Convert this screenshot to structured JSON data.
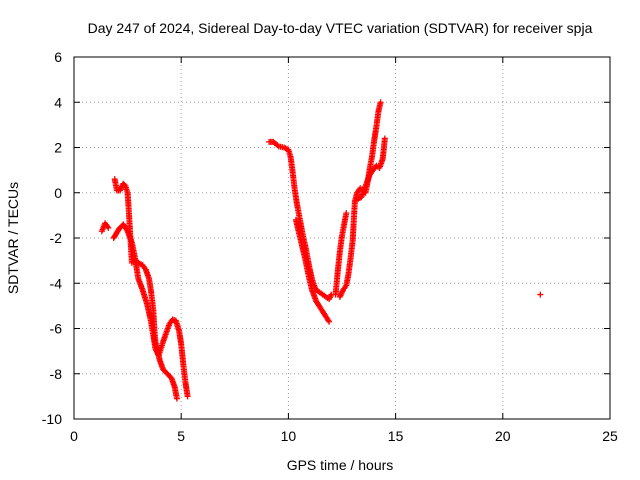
{
  "chart_data": {
    "type": "scatter",
    "title": "Day 247 of 2024, Sidereal Day-to-day VTEC variation (SDTVAR) for receiver spja",
    "xlabel": "GPS time / hours",
    "ylabel": "SDTVAR / TECUs",
    "xlim": [
      0,
      25
    ],
    "ylim": [
      -10,
      6
    ],
    "xticks": [
      0,
      5,
      10,
      15,
      20,
      25
    ],
    "yticks": [
      -10,
      -8,
      -6,
      -4,
      -2,
      0,
      2,
      4,
      6
    ],
    "grid": true,
    "marker": "+",
    "color": "#ff0000",
    "segments": [
      [
        [
          1.3,
          -1.7
        ],
        [
          1.45,
          -1.35
        ],
        [
          1.6,
          -1.55
        ]
      ],
      [
        [
          1.85,
          -2.0
        ],
        [
          2.1,
          -1.6
        ],
        [
          2.3,
          -1.4
        ],
        [
          2.5,
          -1.7
        ],
        [
          2.7,
          -2.2
        ],
        [
          2.85,
          -2.9
        ],
        [
          3.0,
          -3.8
        ],
        [
          3.2,
          -4.3
        ],
        [
          3.4,
          -4.9
        ],
        [
          3.55,
          -5.5
        ],
        [
          3.7,
          -6.3
        ],
        [
          3.8,
          -6.9
        ],
        [
          3.95,
          -7.2
        ],
        [
          4.05,
          -6.9
        ],
        [
          4.15,
          -6.6
        ],
        [
          4.3,
          -6.2
        ],
        [
          4.45,
          -5.8
        ],
        [
          4.6,
          -5.6
        ],
        [
          4.75,
          -5.65
        ],
        [
          4.9,
          -6.1
        ],
        [
          5.0,
          -6.7
        ],
        [
          5.1,
          -7.6
        ],
        [
          5.2,
          -8.4
        ],
        [
          5.3,
          -9.0
        ]
      ],
      [
        [
          1.9,
          0.6
        ],
        [
          2.0,
          0.1
        ],
        [
          2.15,
          0.1
        ],
        [
          2.3,
          0.4
        ],
        [
          2.4,
          0.3
        ],
        [
          2.5,
          0.0
        ],
        [
          2.55,
          -0.7
        ],
        [
          2.6,
          -1.5
        ],
        [
          2.65,
          -2.3
        ],
        [
          2.7,
          -3.1
        ],
        [
          2.85,
          -3.0
        ],
        [
          3.0,
          -3.1
        ],
        [
          3.2,
          -3.2
        ],
        [
          3.35,
          -3.4
        ],
        [
          3.5,
          -3.8
        ],
        [
          3.6,
          -4.4
        ],
        [
          3.7,
          -5.2
        ],
        [
          3.75,
          -6.1
        ],
        [
          3.8,
          -6.6
        ],
        [
          3.9,
          -7.0
        ],
        [
          4.0,
          -7.4
        ],
        [
          4.15,
          -7.8
        ],
        [
          4.35,
          -8.0
        ],
        [
          4.55,
          -8.2
        ],
        [
          4.7,
          -8.6
        ],
        [
          4.8,
          -9.1
        ]
      ],
      [
        [
          9.1,
          2.25
        ],
        [
          9.3,
          2.25
        ],
        [
          9.55,
          2.05
        ],
        [
          9.8,
          2.0
        ],
        [
          10.0,
          1.9
        ],
        [
          10.1,
          1.6
        ],
        [
          10.2,
          0.9
        ],
        [
          10.3,
          0.1
        ],
        [
          10.4,
          -0.5
        ],
        [
          10.5,
          -1.0
        ],
        [
          10.6,
          -1.5
        ],
        [
          10.7,
          -2.0
        ],
        [
          10.8,
          -2.4
        ],
        [
          10.9,
          -2.9
        ],
        [
          11.0,
          -3.4
        ],
        [
          11.1,
          -3.8
        ],
        [
          11.2,
          -4.1
        ],
        [
          11.3,
          -4.3
        ],
        [
          11.45,
          -4.4
        ],
        [
          11.6,
          -4.5
        ],
        [
          11.75,
          -4.6
        ],
        [
          11.9,
          -4.7
        ],
        [
          12.0,
          -4.5
        ]
      ],
      [
        [
          10.35,
          -1.2
        ],
        [
          10.5,
          -1.8
        ],
        [
          10.65,
          -2.4
        ],
        [
          10.8,
          -3.0
        ],
        [
          10.95,
          -3.7
        ],
        [
          11.1,
          -4.3
        ],
        [
          11.3,
          -4.8
        ],
        [
          11.5,
          -5.1
        ],
        [
          11.7,
          -5.4
        ],
        [
          11.9,
          -5.7
        ]
      ],
      [
        [
          12.2,
          -4.5
        ],
        [
          12.3,
          -3.5
        ],
        [
          12.4,
          -2.6
        ],
        [
          12.5,
          -1.9
        ],
        [
          12.6,
          -1.4
        ],
        [
          12.7,
          -0.9
        ]
      ],
      [
        [
          12.4,
          -4.6
        ],
        [
          12.55,
          -4.3
        ],
        [
          12.7,
          -4.1
        ],
        [
          12.8,
          -3.6
        ],
        [
          12.9,
          -2.9
        ],
        [
          13.0,
          -2.1
        ],
        [
          13.05,
          -1.2
        ],
        [
          13.1,
          -0.4
        ],
        [
          13.2,
          0.0
        ],
        [
          13.35,
          0.2
        ],
        [
          13.5,
          0.1
        ],
        [
          13.6,
          0.0
        ],
        [
          13.7,
          0.5
        ],
        [
          13.8,
          1.1
        ],
        [
          13.9,
          1.6
        ],
        [
          14.0,
          2.3
        ],
        [
          14.1,
          2.9
        ],
        [
          14.2,
          3.6
        ],
        [
          14.3,
          4.0
        ]
      ],
      [
        [
          13.2,
          -0.3
        ],
        [
          13.4,
          -0.2
        ],
        [
          13.6,
          0.3
        ],
        [
          13.8,
          0.8
        ],
        [
          13.95,
          1.0
        ],
        [
          14.1,
          1.2
        ],
        [
          14.25,
          1.1
        ],
        [
          14.4,
          1.5
        ],
        [
          14.5,
          2.4
        ]
      ],
      [
        [
          21.75,
          -4.5
        ]
      ]
    ]
  }
}
